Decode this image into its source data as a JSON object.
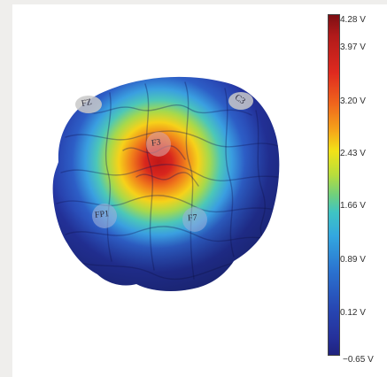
{
  "colorbar": {
    "ticks": [
      "4.28 V",
      "3.97 V",
      "3.20 V",
      "2.43 V",
      "1.66 V",
      "0.89 V",
      "0.12 V",
      "−0.65 V"
    ],
    "min_value": -0.65,
    "max_value": 4.28,
    "colors": [
      "#7d0f13",
      "#e02a1f",
      "#f6a51a",
      "#f2e317",
      "#3fc4c3",
      "#2b74d0",
      "#1f227e"
    ]
  },
  "electrodes": [
    {
      "label": "FZ"
    },
    {
      "label": "C3"
    },
    {
      "label": "F3"
    },
    {
      "label": "FP1"
    },
    {
      "label": "F7"
    }
  ]
}
